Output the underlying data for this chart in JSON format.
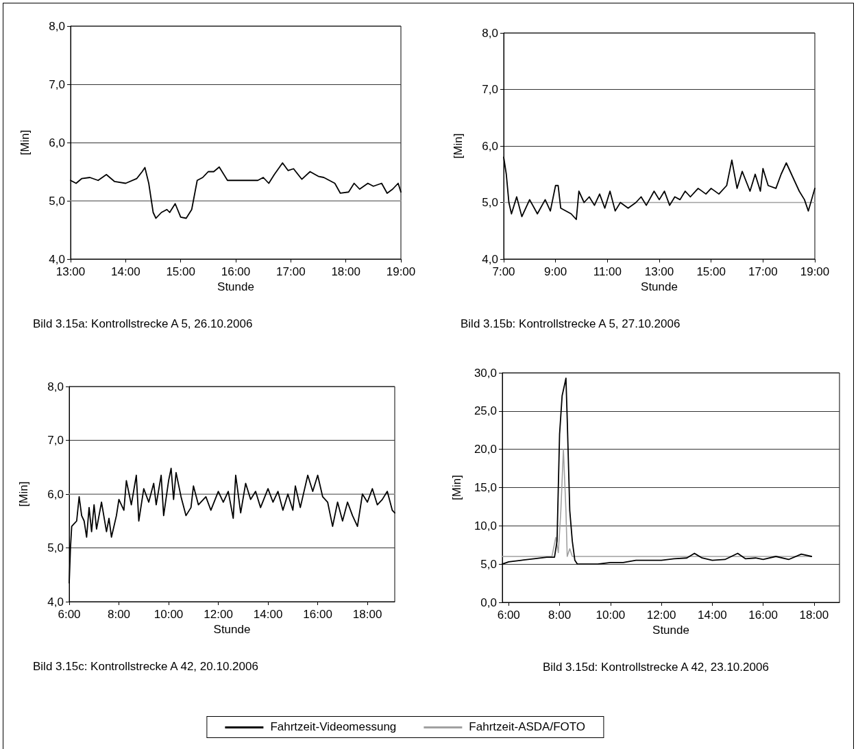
{
  "chart_data": [
    {
      "type": "line",
      "xlabel": "Stunde",
      "ylabel": "[Min]",
      "annotations": [
        "Bild 3.15a: Kontrollstrecke A 5, 26.10.2006"
      ],
      "xlim": [
        13,
        19
      ],
      "ylim": [
        4,
        8
      ],
      "xticks": [
        {
          "value": 13,
          "label": "13:00"
        },
        {
          "value": 14,
          "label": "14:00"
        },
        {
          "value": 15,
          "label": "15:00"
        },
        {
          "value": 16,
          "label": "16:00"
        },
        {
          "value": 17,
          "label": "17:00"
        },
        {
          "value": 18,
          "label": "18:00"
        },
        {
          "value": 19,
          "label": "19:00"
        }
      ],
      "yticks": [
        {
          "value": 4,
          "label": "4,0"
        },
        {
          "value": 5,
          "label": "5,0"
        },
        {
          "value": 6,
          "label": "6,0"
        },
        {
          "value": 7,
          "label": "7,0"
        },
        {
          "value": 8,
          "label": "8,0"
        }
      ],
      "grid": "y",
      "marker": "none",
      "line_style": "solid",
      "legend": "bottom",
      "series": [
        {
          "name": "Fahrtzeit-Videomessung",
          "color": "#000000",
          "x": [
            13,
            13.1,
            13.2,
            13.35,
            13.5,
            13.65,
            13.8,
            14,
            14.2,
            14.3,
            14.35,
            14.42,
            14.5,
            14.55,
            14.65,
            14.75,
            14.8,
            14.9,
            15,
            15.1,
            15.2,
            15.3,
            15.4,
            15.5,
            15.6,
            15.7,
            15.85,
            16,
            16.2,
            16.4,
            16.5,
            16.6,
            16.7,
            16.85,
            16.95,
            17.05,
            17.2,
            17.35,
            17.5,
            17.6,
            17.8,
            17.9,
            18.05,
            18.15,
            18.25,
            18.4,
            18.5,
            18.65,
            18.75,
            18.85,
            18.95,
            19
          ],
          "values": [
            5.35,
            5.3,
            5.38,
            5.4,
            5.35,
            5.45,
            5.33,
            5.3,
            5.38,
            5.5,
            5.57,
            5.3,
            4.8,
            4.7,
            4.8,
            4.85,
            4.8,
            4.95,
            4.72,
            4.7,
            4.85,
            5.35,
            5.4,
            5.5,
            5.5,
            5.58,
            5.35,
            5.35,
            5.35,
            5.35,
            5.4,
            5.3,
            5.45,
            5.65,
            5.52,
            5.55,
            5.37,
            5.5,
            5.42,
            5.4,
            5.3,
            5.13,
            5.15,
            5.3,
            5.2,
            5.3,
            5.25,
            5.3,
            5.13,
            5.2,
            5.3,
            5.15
          ]
        },
        {
          "name": "Fahrtzeit-ASDA/FOTO",
          "color": "#a0a0a0",
          "x": [
            13,
            19
          ],
          "values": [
            5,
            5
          ]
        }
      ]
    },
    {
      "type": "line",
      "xlabel": "Stunde",
      "ylabel": "[Min]",
      "annotations": [
        "Bild 3.15b: Kontrollstrecke A 5, 27.10.2006"
      ],
      "xlim": [
        7,
        19
      ],
      "ylim": [
        4,
        8
      ],
      "xticks": [
        {
          "value": 7,
          "label": "7:00"
        },
        {
          "value": 9,
          "label": "9:00"
        },
        {
          "value": 11,
          "label": "11:00"
        },
        {
          "value": 13,
          "label": "13:00"
        },
        {
          "value": 15,
          "label": "15:00"
        },
        {
          "value": 17,
          "label": "17:00"
        },
        {
          "value": 19,
          "label": "19:00"
        }
      ],
      "yticks": [
        {
          "value": 4,
          "label": "4,0"
        },
        {
          "value": 5,
          "label": "5,0"
        },
        {
          "value": 6,
          "label": "6,0"
        },
        {
          "value": 7,
          "label": "7,0"
        },
        {
          "value": 8,
          "label": "8,0"
        }
      ],
      "grid": "y",
      "marker": "none",
      "line_style": "solid",
      "legend": "bottom",
      "series": [
        {
          "name": "Fahrtzeit-Videomessung",
          "color": "#000000",
          "x": [
            7,
            7.1,
            7.2,
            7.3,
            7.5,
            7.7,
            8,
            8.3,
            8.6,
            8.8,
            9,
            9.1,
            9.2,
            9.6,
            9.8,
            9.9,
            10.1,
            10.3,
            10.5,
            10.7,
            10.9,
            11.1,
            11.3,
            11.5,
            11.8,
            12.1,
            12.3,
            12.5,
            12.8,
            13,
            13.2,
            13.4,
            13.6,
            13.8,
            14,
            14.2,
            14.5,
            14.8,
            15,
            15.3,
            15.6,
            15.8,
            16,
            16.2,
            16.5,
            16.7,
            16.9,
            17,
            17.2,
            17.5,
            17.7,
            17.9,
            18.1,
            18.4,
            18.6,
            18.75,
            19
          ],
          "values": [
            5.8,
            5.5,
            5,
            4.8,
            5.1,
            4.75,
            5.05,
            4.8,
            5.05,
            4.85,
            5.3,
            5.3,
            4.9,
            4.8,
            4.7,
            5.2,
            5,
            5.1,
            4.95,
            5.15,
            4.9,
            5.2,
            4.85,
            5,
            4.9,
            5,
            5.1,
            4.95,
            5.2,
            5.05,
            5.2,
            4.95,
            5.1,
            5.05,
            5.2,
            5.1,
            5.25,
            5.15,
            5.25,
            5.15,
            5.3,
            5.75,
            5.25,
            5.55,
            5.2,
            5.5,
            5.2,
            5.6,
            5.3,
            5.25,
            5.5,
            5.7,
            5.5,
            5.2,
            5.05,
            4.85,
            5.25
          ]
        },
        {
          "name": "Fahrtzeit-ASDA/FOTO",
          "color": "#a0a0a0",
          "x": [
            7,
            19
          ],
          "values": [
            5,
            5
          ]
        }
      ]
    },
    {
      "type": "line",
      "xlabel": "Stunde",
      "ylabel": "[Min]",
      "annotations": [
        "Bild 3.15c: Kontrollstrecke A 42, 20.10.2006"
      ],
      "xlim": [
        6,
        19.1
      ],
      "ylim": [
        4,
        8
      ],
      "xticks": [
        {
          "value": 6,
          "label": "6:00"
        },
        {
          "value": 8,
          "label": "8:00"
        },
        {
          "value": 10,
          "label": "10:00"
        },
        {
          "value": 12,
          "label": "12:00"
        },
        {
          "value": 14,
          "label": "14:00"
        },
        {
          "value": 16,
          "label": "16:00"
        },
        {
          "value": 18,
          "label": "18:00"
        }
      ],
      "yticks": [
        {
          "value": 4,
          "label": "4,0"
        },
        {
          "value": 5,
          "label": "5,0"
        },
        {
          "value": 6,
          "label": "6,0"
        },
        {
          "value": 7,
          "label": "7,0"
        },
        {
          "value": 8,
          "label": "8,0"
        }
      ],
      "grid": "y",
      "marker": "none",
      "line_style": "solid",
      "legend": "bottom",
      "series": [
        {
          "name": "Fahrtzeit-Videomessung",
          "color": "#000000",
          "x": [
            6,
            6.05,
            6.1,
            6.2,
            6.3,
            6.4,
            6.5,
            6.6,
            6.7,
            6.8,
            6.9,
            7,
            7.1,
            7.3,
            7.5,
            7.6,
            7.7,
            7.9,
            8,
            8.2,
            8.3,
            8.5,
            8.7,
            8.8,
            9,
            9.2,
            9.4,
            9.5,
            9.7,
            9.8,
            10,
            10.1,
            10.2,
            10.3,
            10.5,
            10.7,
            10.9,
            11,
            11.2,
            11.5,
            11.7,
            12,
            12.2,
            12.4,
            12.6,
            12.7,
            12.9,
            13.1,
            13.3,
            13.5,
            13.7,
            14,
            14.2,
            14.4,
            14.6,
            14.8,
            15,
            15.1,
            15.3,
            15.6,
            15.8,
            16,
            16.2,
            16.4,
            16.6,
            16.8,
            17,
            17.2,
            17.4,
            17.6,
            17.8,
            18,
            18.2,
            18.4,
            18.6,
            18.8,
            19,
            19.1
          ],
          "values": [
            4.35,
            5,
            5.4,
            5.45,
            5.5,
            5.95,
            5.6,
            5.5,
            5.2,
            5.75,
            5.3,
            5.8,
            5.35,
            5.85,
            5.3,
            5.55,
            5.2,
            5.6,
            5.9,
            5.7,
            6.25,
            5.8,
            6.35,
            5.5,
            6.1,
            5.85,
            6.2,
            5.8,
            6.35,
            5.6,
            6.25,
            6.48,
            5.9,
            6.4,
            5.95,
            5.6,
            5.75,
            6.15,
            5.8,
            5.95,
            5.7,
            6.05,
            5.85,
            6.05,
            5.55,
            6.35,
            5.65,
            6.2,
            5.9,
            6.05,
            5.75,
            6.1,
            5.85,
            6.05,
            5.7,
            6,
            5.7,
            6.15,
            5.75,
            6.35,
            6.05,
            6.35,
            5.95,
            5.85,
            5.4,
            5.85,
            5.5,
            5.85,
            5.6,
            5.4,
            6,
            5.85,
            6.1,
            5.8,
            5.9,
            6.05,
            5.7,
            5.65
          ]
        },
        {
          "name": "Fahrtzeit-ASDA/FOTO",
          "color": "#a0a0a0",
          "x": [
            6,
            19.1
          ],
          "values": [
            6,
            6
          ]
        }
      ]
    },
    {
      "type": "line",
      "xlabel": "Stunde",
      "ylabel": "[Min]",
      "annotations": [
        "Bild 3.15d: Kontrollstrecke A 42, 23.10.2006"
      ],
      "xlim": [
        5.75,
        19
      ],
      "ylim": [
        0,
        30
      ],
      "xticks": [
        {
          "value": 6,
          "label": "6:00"
        },
        {
          "value": 8,
          "label": "8:00"
        },
        {
          "value": 10,
          "label": "10:00"
        },
        {
          "value": 12,
          "label": "12:00"
        },
        {
          "value": 14,
          "label": "14:00"
        },
        {
          "value": 16,
          "label": "16:00"
        },
        {
          "value": 18,
          "label": "18:00"
        }
      ],
      "yticks": [
        {
          "value": 0,
          "label": "0,0"
        },
        {
          "value": 5,
          "label": "5,0"
        },
        {
          "value": 10,
          "label": "10,0"
        },
        {
          "value": 15,
          "label": "15,0"
        },
        {
          "value": 20,
          "label": "20,0"
        },
        {
          "value": 25,
          "label": "25,0"
        },
        {
          "value": 30,
          "label": "30,0"
        }
      ],
      "grid": "y",
      "marker": "none",
      "line_style": "solid",
      "legend": "bottom",
      "series": [
        {
          "name": "Fahrtzeit-Videomessung",
          "color": "#000000",
          "x": [
            5.75,
            6,
            6.5,
            7,
            7.5,
            7.8,
            7.9,
            8,
            8.1,
            8.2,
            8.25,
            8.3,
            8.4,
            8.5,
            8.6,
            8.7,
            9,
            9.5,
            10,
            10.5,
            11,
            11.5,
            12,
            12.5,
            13,
            13.3,
            13.6,
            14,
            14.5,
            15,
            15.3,
            15.7,
            16,
            16.5,
            17,
            17.5,
            17.9
          ],
          "values": [
            5,
            5.3,
            5.5,
            5.7,
            5.9,
            5.9,
            8,
            22,
            27,
            28.5,
            29.3,
            24,
            12,
            8,
            5.5,
            5,
            5,
            5,
            5.2,
            5.2,
            5.5,
            5.5,
            5.5,
            5.7,
            5.8,
            6.4,
            5.8,
            5.5,
            5.6,
            6.4,
            5.7,
            5.8,
            5.6,
            6,
            5.6,
            6.3,
            6
          ]
        },
        {
          "name": "Fahrtzeit-ASDA/FOTO",
          "color": "#a0a0a0",
          "x": [
            5.75,
            7.7,
            7.85,
            7.95,
            8.05,
            8.15,
            8.25,
            8.3,
            8.4,
            8.5,
            17.9
          ],
          "values": [
            6,
            6,
            8.5,
            6.5,
            12,
            20,
            12,
            6,
            7,
            6,
            6
          ]
        }
      ]
    }
  ]
}
